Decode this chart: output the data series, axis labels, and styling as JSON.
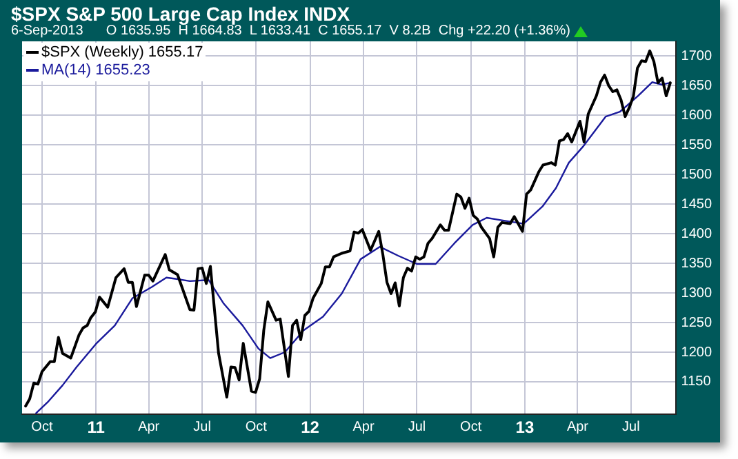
{
  "chart_data": {
    "type": "line",
    "title": "$SPX S&P 500 Large Cap Index INDX",
    "subtitle": "6-Sep-2013      O 1635.95  H 1664.83  L 1633.41  C 1655.17  V 8.2B  Chg +22.20 (+1.36%)",
    "xlim": [
      "2010-08-28",
      "2013-09-15"
    ],
    "xticks": [
      {
        "value": "2010-10-01",
        "label": "Oct"
      },
      {
        "value": "2011-01-01",
        "label": "11"
      },
      {
        "value": "2011-04-01",
        "label": "Apr"
      },
      {
        "value": "2011-07-01",
        "label": "Jul"
      },
      {
        "value": "2011-10-01",
        "label": "Oct"
      },
      {
        "value": "2012-01-01",
        "label": "12"
      },
      {
        "value": "2012-04-01",
        "label": "Apr"
      },
      {
        "value": "2012-07-01",
        "label": "Jul"
      },
      {
        "value": "2012-10-01",
        "label": "Oct"
      },
      {
        "value": "2013-01-01",
        "label": "13"
      },
      {
        "value": "2013-04-01",
        "label": "Apr"
      },
      {
        "value": "2013-07-01",
        "label": "Jul"
      }
    ],
    "ylim": [
      1095,
      1725
    ],
    "yticks": [
      1150,
      1200,
      1250,
      1300,
      1350,
      1400,
      1450,
      1500,
      1550,
      1600,
      1650,
      1700
    ],
    "grid": true,
    "legend": "top left",
    "marker": "none",
    "line_style": "solid",
    "series": [
      {
        "name": "$SPX (Weekly) 1655.17",
        "color": "#000000",
        "x": [
          "2010-09-03",
          "2010-09-10",
          "2010-09-17",
          "2010-09-24",
          "2010-10-01",
          "2010-10-15",
          "2010-10-22",
          "2010-10-29",
          "2010-11-05",
          "2010-11-19",
          "2010-12-03",
          "2010-12-10",
          "2010-12-17",
          "2010-12-23",
          "2010-12-31",
          "2011-01-07",
          "2011-01-21",
          "2011-02-04",
          "2011-02-18",
          "2011-02-25",
          "2011-03-04",
          "2011-03-11",
          "2011-03-25",
          "2011-04-01",
          "2011-04-08",
          "2011-04-29",
          "2011-05-06",
          "2011-05-20",
          "2011-06-10",
          "2011-06-17",
          "2011-06-24",
          "2011-07-01",
          "2011-07-08",
          "2011-07-15",
          "2011-07-29",
          "2011-08-12",
          "2011-08-19",
          "2011-08-26",
          "2011-09-02",
          "2011-09-09",
          "2011-09-23",
          "2011-09-30",
          "2011-10-07",
          "2011-10-14",
          "2011-10-21",
          "2011-11-04",
          "2011-11-11",
          "2011-11-25",
          "2011-12-02",
          "2011-12-09",
          "2011-12-16",
          "2011-12-23",
          "2011-12-30",
          "2012-01-06",
          "2012-01-20",
          "2012-01-27",
          "2012-02-03",
          "2012-02-10",
          "2012-02-24",
          "2012-03-09",
          "2012-03-16",
          "2012-03-23",
          "2012-03-30",
          "2012-04-13",
          "2012-04-27",
          "2012-05-04",
          "2012-05-11",
          "2012-05-18",
          "2012-05-25",
          "2012-06-01",
          "2012-06-08",
          "2012-06-15",
          "2012-06-22",
          "2012-06-29",
          "2012-07-06",
          "2012-07-13",
          "2012-07-20",
          "2012-07-27",
          "2012-08-10",
          "2012-08-17",
          "2012-08-24",
          "2012-09-07",
          "2012-09-14",
          "2012-09-21",
          "2012-09-28",
          "2012-10-05",
          "2012-10-12",
          "2012-10-19",
          "2012-11-02",
          "2012-11-09",
          "2012-11-16",
          "2012-11-23",
          "2012-12-07",
          "2012-12-14",
          "2012-12-28",
          "2013-01-04",
          "2013-01-11",
          "2013-01-25",
          "2013-02-01",
          "2013-02-15",
          "2013-02-22",
          "2013-03-01",
          "2013-03-08",
          "2013-03-15",
          "2013-03-22",
          "2013-04-05",
          "2013-04-12",
          "2013-04-19",
          "2013-05-03",
          "2013-05-10",
          "2013-05-17",
          "2013-05-24",
          "2013-05-31",
          "2013-06-07",
          "2013-06-14",
          "2013-06-21",
          "2013-06-28",
          "2013-07-05",
          "2013-07-12",
          "2013-07-19",
          "2013-07-26",
          "2013-08-02",
          "2013-08-09",
          "2013-08-16",
          "2013-08-23",
          "2013-08-30",
          "2013-09-06"
        ],
        "values": [
          1109,
          1121,
          1148,
          1146,
          1167,
          1184,
          1184,
          1225,
          1198,
          1190,
          1229,
          1241,
          1245,
          1258,
          1268,
          1293,
          1276,
          1326,
          1341,
          1318,
          1318,
          1277,
          1330,
          1330,
          1320,
          1365,
          1339,
          1331,
          1272,
          1271,
          1341,
          1342,
          1316,
          1345,
          1198,
          1124,
          1175,
          1174,
          1153,
          1215,
          1134,
          1132,
          1155,
          1237,
          1285,
          1254,
          1256,
          1159,
          1245,
          1254,
          1221,
          1262,
          1269,
          1291,
          1316,
          1344,
          1344,
          1361,
          1367,
          1371,
          1403,
          1401,
          1407,
          1372,
          1404,
          1365,
          1318,
          1299,
          1317,
          1278,
          1326,
          1342,
          1337,
          1361,
          1357,
          1361,
          1384,
          1392,
          1415,
          1406,
          1406,
          1467,
          1462,
          1443,
          1460,
          1431,
          1425,
          1411,
          1392,
          1361,
          1411,
          1419,
          1417,
          1429,
          1404,
          1467,
          1474,
          1505,
          1516,
          1520,
          1516,
          1557,
          1559,
          1569,
          1555,
          1590,
          1555,
          1602,
          1633,
          1656,
          1668,
          1650,
          1640,
          1643,
          1626,
          1598,
          1613,
          1632,
          1680,
          1692,
          1691,
          1709,
          1691,
          1655,
          1663,
          1633,
          1655
        ]
      },
      {
        "name": "MA(14) 1655.23",
        "color": "#1a1a9c",
        "x": [
          "2010-09-21",
          "2010-10-12",
          "2010-11-05",
          "2010-11-29",
          "2011-01-01",
          "2011-02-02",
          "2011-03-04",
          "2011-04-06",
          "2011-05-01",
          "2011-05-16",
          "2011-06-10",
          "2011-07-12",
          "2011-08-06",
          "2011-09-08",
          "2011-10-05",
          "2011-10-25",
          "2011-11-19",
          "2011-12-21",
          "2012-01-23",
          "2012-02-24",
          "2012-03-27",
          "2012-04-29",
          "2012-05-30",
          "2012-07-01",
          "2012-08-02",
          "2012-09-03",
          "2012-10-04",
          "2012-10-28",
          "2012-11-21",
          "2012-12-30",
          "2013-01-31",
          "2013-02-23",
          "2013-03-17",
          "2013-04-10",
          "2013-05-19",
          "2013-06-12",
          "2013-07-13",
          "2013-08-06",
          "2013-08-22",
          "2013-09-06"
        ],
        "values": [
          1097,
          1117,
          1144,
          1175,
          1214,
          1245,
          1291,
          1310,
          1326,
          1324,
          1320,
          1322,
          1283,
          1245,
          1206,
          1190,
          1200,
          1237,
          1260,
          1299,
          1357,
          1378,
          1363,
          1349,
          1349,
          1384,
          1415,
          1427,
          1423,
          1417,
          1446,
          1477,
          1520,
          1547,
          1598,
          1606,
          1633,
          1656,
          1652,
          1655
        ]
      }
    ]
  }
}
